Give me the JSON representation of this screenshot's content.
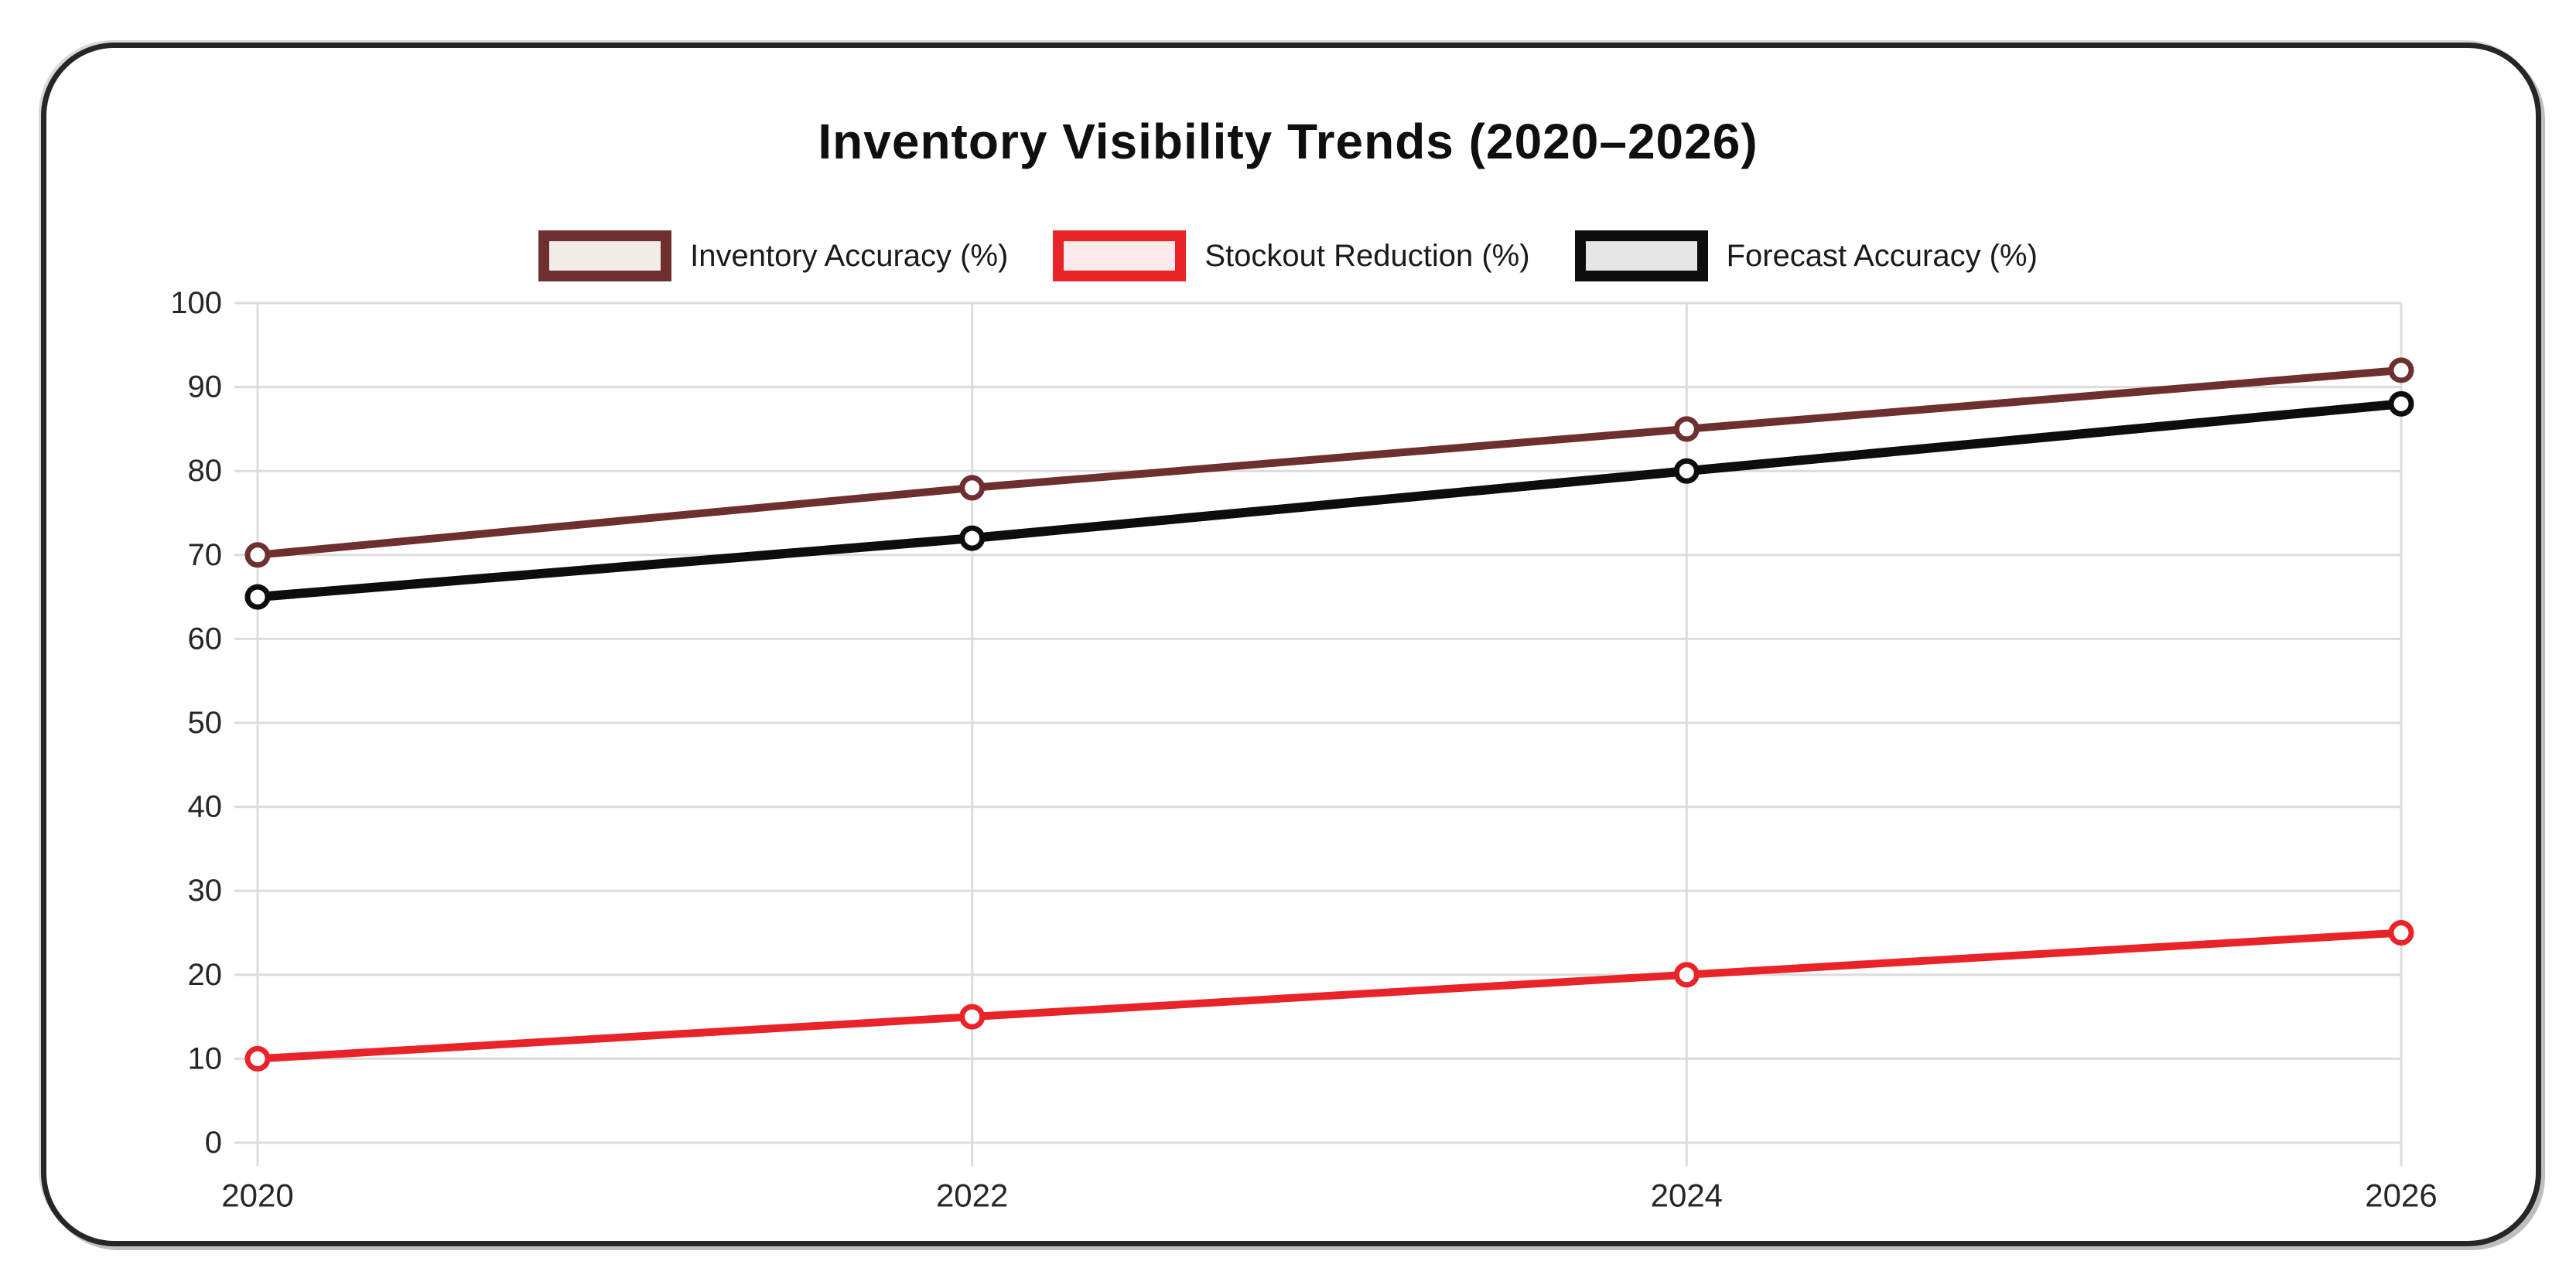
{
  "chart_data": {
    "type": "line",
    "title": "Inventory Visibility Trends (2020–2026)",
    "x": [
      2020,
      2022,
      2024,
      2026
    ],
    "x_tick_labels": [
      "2020",
      "2022",
      "2024",
      "2026"
    ],
    "ylim": [
      0,
      100
    ],
    "y_tick_step": 10,
    "y_tick_labels": [
      "0",
      "10",
      "20",
      "30",
      "40",
      "50",
      "60",
      "70",
      "80",
      "90",
      "100"
    ],
    "grid": true,
    "legend_position": "top-center",
    "marker_style": "open-circle",
    "series": [
      {
        "name": "Inventory Accuracy (%)",
        "slug": "inventory-accuracy",
        "values": [
          70,
          78,
          85,
          92
        ],
        "line_color": "#6e2f2f",
        "legend_fill": "#f2ece9",
        "line_width": 10
      },
      {
        "name": "Stockout Reduction (%)",
        "slug": "stockout-reduction",
        "values": [
          10,
          15,
          20,
          25
        ],
        "line_color": "#e92429",
        "legend_fill": "#fdeaea",
        "line_width": 10
      },
      {
        "name": "Forecast Accuracy (%)",
        "slug": "forecast-accuracy",
        "values": [
          65,
          72,
          80,
          88
        ],
        "line_color": "#0d0d0d",
        "legend_fill": "#e6e6e6",
        "line_width": 12
      }
    ],
    "colors": {
      "gridline": "#dcdcdc",
      "tick_text": "#262626",
      "marker_fill": "#ffffff",
      "card_border": "#262626",
      "background": "#ffffff"
    }
  }
}
